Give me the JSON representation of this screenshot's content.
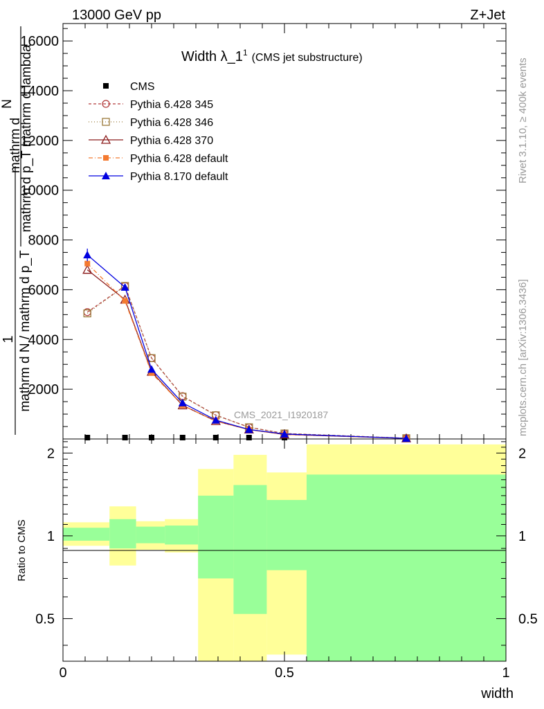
{
  "header": {
    "left": "13000 GeV pp",
    "right": "Z+Jet"
  },
  "side_text": {
    "rivet": "Rivet 3.1.10, ≥ 400k events",
    "mcplots": "mcplots.cern.ch [arXiv:1306.3436]"
  },
  "chart_data": {
    "type": "line",
    "title": "Width λ_1",
    "title_sup": "1",
    "title_suffix": "(CMS jet substructure)",
    "watermark": "CMS_2021_I1920187",
    "ylabel_top_numer": "1",
    "ylabel_top_denom": "mathrm d N / mathrm d p_T",
    "ylabel_top_numer2": "mathrm d",
    "ylabel_top_numer3": "N",
    "ylabel_top_denom2": "mathrm d p_T mathrm d lambda",
    "ylabel_ratio": "Ratio to CMS",
    "xlabel": "width",
    "xlim": [
      0,
      1
    ],
    "ylim_main": [
      0,
      16700
    ],
    "ylim_ratio": [
      0.35,
      2.25
    ],
    "x_ticks": [
      "0",
      "0.5",
      "1"
    ],
    "x_tick_values": [
      0,
      0.5,
      1
    ],
    "y_ticks_main": [
      "2000",
      "4000",
      "6000",
      "8000",
      "10000",
      "12000",
      "14000",
      "16000"
    ],
    "y_tick_values_main": [
      2000,
      4000,
      6000,
      8000,
      10000,
      12000,
      14000,
      16000
    ],
    "y_ticks_ratio": [
      "0.5",
      "1",
      "2"
    ],
    "y_tick_values_ratio": [
      0.5,
      1,
      2
    ],
    "x": [
      0.055,
      0.14,
      0.2,
      0.27,
      0.345,
      0.42,
      0.5,
      0.775
    ],
    "bin_edges": [
      0,
      0.105,
      0.165,
      0.23,
      0.305,
      0.385,
      0.46,
      0.55,
      1.0
    ],
    "cms": [
      0,
      0,
      0,
      0,
      0,
      0,
      0,
      0
    ],
    "series": [
      {
        "name": "CMS",
        "color": "#000000",
        "marker": "square-filled",
        "values": [
          0,
          0,
          0,
          0,
          0,
          0,
          0,
          0
        ]
      },
      {
        "name": "Pythia 6.428 345",
        "color": "#b23a3a",
        "marker": "circle-open",
        "dash": "4,3",
        "values": [
          5100,
          6150,
          3250,
          1720,
          960,
          470,
          220,
          30
        ]
      },
      {
        "name": "Pythia 6.428 346",
        "color": "#9a7a3a",
        "marker": "square-open",
        "dash": "1,3",
        "values": [
          5050,
          6150,
          3250,
          1700,
          950,
          470,
          220,
          30
        ]
      },
      {
        "name": "Pythia 6.428 370",
        "color": "#8b1a1a",
        "marker": "triangle-open",
        "dash": "",
        "values": [
          6800,
          5600,
          2700,
          1350,
          720,
          380,
          180,
          25
        ]
      },
      {
        "name": "Pythia 6.428 default",
        "color": "#f47a30",
        "marker": "square-filled",
        "dash": "6,3,1,3",
        "values": [
          7050,
          5550,
          2650,
          1350,
          720,
          370,
          180,
          25
        ]
      },
      {
        "name": "Pythia 8.170 default",
        "color": "#0000e0",
        "marker": "triangle-filled",
        "dash": "",
        "values": [
          7400,
          6100,
          2800,
          1450,
          760,
          380,
          200,
          25
        ]
      }
    ],
    "ratio_band_outer": [
      [
        0.92,
        1.12
      ],
      [
        0.78,
        1.28
      ],
      [
        0.89,
        1.13
      ],
      [
        0.87,
        1.15
      ],
      [
        0.35,
        1.75
      ],
      [
        0.35,
        1.97
      ],
      [
        0.37,
        1.7
      ],
      [
        0.35,
        2.15
      ]
    ],
    "ratio_band_inner": [
      [
        0.96,
        1.07
      ],
      [
        0.9,
        1.15
      ],
      [
        0.94,
        1.08
      ],
      [
        0.93,
        1.09
      ],
      [
        0.7,
        1.4
      ],
      [
        0.52,
        1.53
      ],
      [
        0.75,
        1.35
      ],
      [
        0.35,
        1.67
      ]
    ]
  }
}
